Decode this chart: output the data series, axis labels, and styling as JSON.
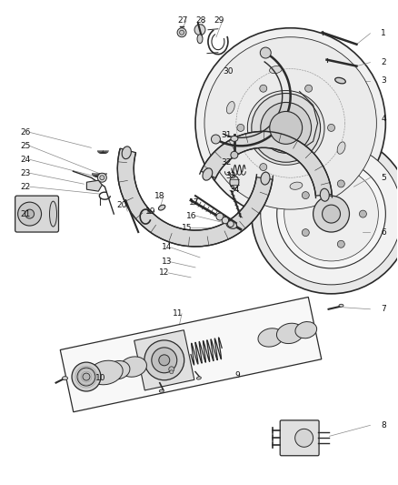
{
  "bg": "#ffffff",
  "lc": "#2a2a2a",
  "gray1": "#e0e0e0",
  "gray2": "#c8c8c8",
  "gray3": "#b0b0b0",
  "gray4": "#f5f5f5",
  "figsize": [
    4.38,
    5.33
  ],
  "dpi": 100,
  "labels": [
    [
      "1",
      421,
      36
    ],
    [
      "2",
      421,
      68
    ],
    [
      "3",
      421,
      88
    ],
    [
      "4",
      421,
      130
    ],
    [
      "5",
      421,
      195
    ],
    [
      "6",
      421,
      255
    ],
    [
      "7",
      421,
      340
    ],
    [
      "8",
      421,
      468
    ],
    [
      "9",
      265,
      412
    ],
    [
      "10",
      110,
      415
    ],
    [
      "11",
      195,
      340
    ],
    [
      "12",
      185,
      296
    ],
    [
      "13",
      185,
      308
    ],
    [
      "14",
      185,
      270
    ],
    [
      "15",
      205,
      248
    ],
    [
      "16",
      210,
      237
    ],
    [
      "17",
      215,
      225
    ],
    [
      "18",
      218,
      215
    ],
    [
      "19",
      178,
      235
    ],
    [
      "20",
      138,
      228
    ],
    [
      "21",
      28,
      235
    ],
    [
      "22",
      28,
      205
    ],
    [
      "23",
      28,
      190
    ],
    [
      "24",
      28,
      175
    ],
    [
      "25",
      28,
      160
    ],
    [
      "26",
      28,
      145
    ],
    [
      "27",
      198,
      22
    ],
    [
      "28",
      218,
      22
    ],
    [
      "29",
      238,
      22
    ],
    [
      "30",
      252,
      78
    ],
    [
      "31",
      250,
      148
    ],
    [
      "32",
      250,
      178
    ],
    [
      "33",
      255,
      193
    ],
    [
      "34",
      258,
      208
    ]
  ]
}
